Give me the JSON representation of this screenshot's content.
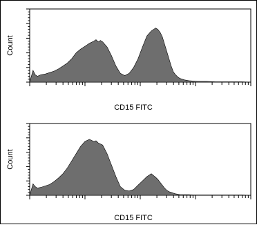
{
  "chart_data": [
    {
      "type": "area",
      "xlabel": "CD15 FITC",
      "ylabel": "Count",
      "xscale": "log",
      "xlim": [
        0,
        100
      ],
      "ylim": [
        0,
        100
      ],
      "fill_color": "#6e6e6e",
      "x": [
        0,
        1.5,
        2.5,
        3.5,
        5,
        7,
        9,
        11,
        13,
        15,
        17,
        19,
        21,
        23,
        25,
        27,
        29,
        30,
        31,
        32,
        33,
        35,
        37,
        39,
        41,
        43,
        45,
        47,
        49,
        51,
        53,
        55,
        57,
        58,
        59,
        60,
        61,
        62,
        63,
        64,
        65,
        66,
        67,
        68,
        69,
        70,
        72,
        74,
        76,
        78,
        80,
        84,
        88,
        92,
        96,
        100
      ],
      "y": [
        0,
        16,
        10,
        8,
        10,
        11,
        13,
        15,
        18,
        22,
        26,
        32,
        40,
        45,
        49,
        53,
        56,
        58,
        55,
        57,
        55,
        48,
        36,
        22,
        12,
        9,
        12,
        20,
        32,
        48,
        63,
        70,
        74,
        72,
        68,
        62,
        52,
        42,
        32,
        22,
        14,
        10,
        7,
        5,
        4,
        3,
        2,
        1.5,
        1,
        1,
        1,
        0.5,
        0.5,
        0.5,
        0.5,
        0
      ]
    },
    {
      "type": "area",
      "xlabel": "CD15 FITC",
      "ylabel": "Count",
      "xscale": "log",
      "xlim": [
        0,
        100
      ],
      "ylim": [
        0,
        100
      ],
      "fill_color": "#6e6e6e",
      "x": [
        0,
        1.5,
        2.5,
        3.5,
        5,
        7,
        9,
        11,
        13,
        15,
        17,
        19,
        21,
        23,
        25,
        27,
        29,
        30,
        31,
        33,
        35,
        37,
        39,
        41,
        43,
        45,
        47,
        49,
        51,
        53,
        55,
        57,
        58,
        59,
        60,
        61,
        62,
        63,
        64,
        65,
        66,
        67,
        68,
        70,
        72,
        74,
        76,
        78,
        80,
        84,
        88,
        92,
        96,
        100
      ],
      "y": [
        0,
        16,
        12,
        10,
        11,
        13,
        15,
        19,
        24,
        30,
        38,
        48,
        58,
        68,
        75,
        78,
        75,
        76,
        73,
        70,
        58,
        42,
        26,
        12,
        7,
        6,
        8,
        14,
        20,
        26,
        30,
        25,
        22,
        18,
        14,
        10,
        7,
        5,
        4,
        3,
        2,
        1.5,
        1,
        1,
        1,
        0.5,
        0.5,
        0.5,
        0.5,
        0.5,
        0.5,
        0.5,
        0.5,
        0
      ]
    }
  ]
}
